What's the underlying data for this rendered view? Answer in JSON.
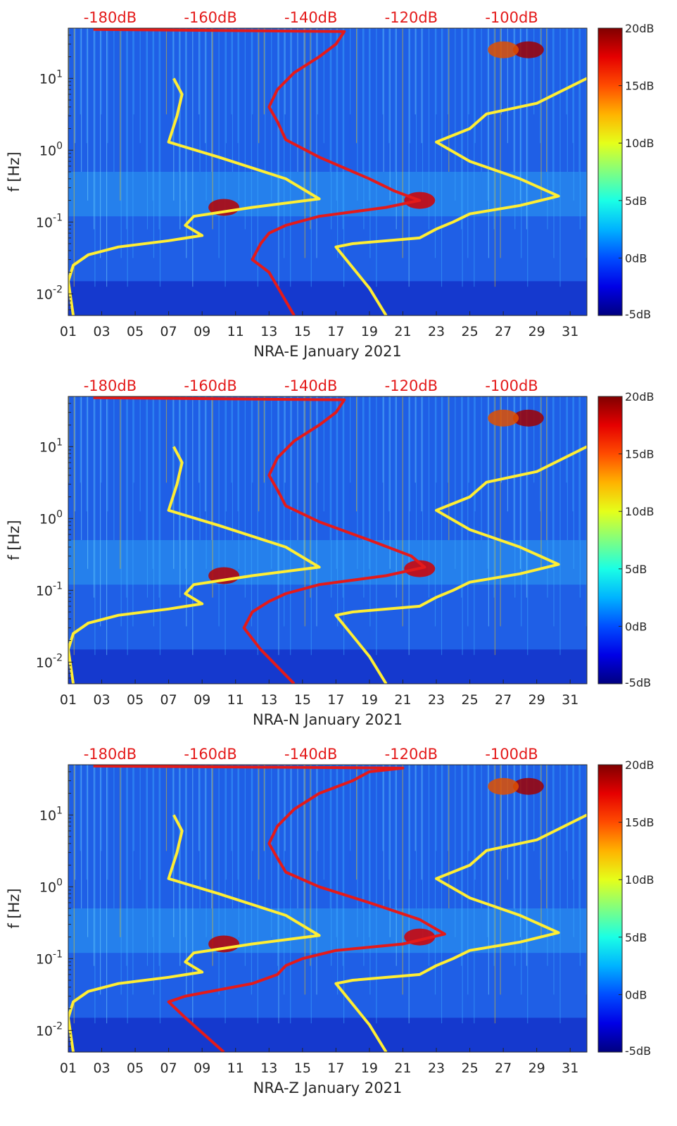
{
  "chart_data": [
    {
      "type": "heatmap",
      "title": "NRA-E January 2021",
      "xlabel": "NRA-E January 2021",
      "ylabel": "f [Hz]",
      "x_ticks": [
        "01",
        "03",
        "05",
        "07",
        "09",
        "11",
        "13",
        "15",
        "17",
        "19",
        "21",
        "23",
        "25",
        "27",
        "29",
        "31"
      ],
      "x_tick_values": [
        1,
        3,
        5,
        7,
        9,
        11,
        13,
        15,
        17,
        19,
        21,
        23,
        25,
        27,
        29,
        31
      ],
      "xlim": [
        1,
        32
      ],
      "ylim": [
        0.005,
        50
      ],
      "y_scale": "log",
      "y_ticks": [
        {
          "base": "10",
          "exp": "1",
          "value": 10
        },
        {
          "base": "10",
          "exp": "0",
          "value": 1
        },
        {
          "base": "10",
          "exp": "-1",
          "value": 0.1
        },
        {
          "base": "10",
          "exp": "-2",
          "value": 0.01
        }
      ],
      "top_axis_labels": [
        "-180dB",
        "-160dB",
        "-140dB",
        "-120dB",
        "-100dB"
      ],
      "top_axis_positions": [
        3.5,
        9.5,
        15.5,
        21.5,
        27.5
      ],
      "colorbar": {
        "labels": [
          "20dB",
          "15dB",
          "10dB",
          "5dB",
          "0dB",
          "-5dB"
        ],
        "values": [
          20,
          15,
          10,
          5,
          0,
          -5
        ],
        "range": [
          -5,
          20
        ],
        "colormap": "jet"
      },
      "series": [
        {
          "name": "yellow-left",
          "color": "#ffee33",
          "points": [
            [
              1.3,
              0.005
            ],
            [
              1,
              0.015
            ],
            [
              1.3,
              0.025
            ],
            [
              2.2,
              0.035
            ],
            [
              4,
              0.045
            ],
            [
              7,
              0.055
            ],
            [
              9,
              0.065
            ],
            [
              8,
              0.09
            ],
            [
              8.5,
              0.12
            ],
            [
              12,
              0.16
            ],
            [
              16,
              0.21
            ],
            [
              14,
              0.4
            ],
            [
              10,
              0.8
            ],
            [
              7,
              1.3
            ],
            [
              7.5,
              3
            ],
            [
              7.8,
              6
            ],
            [
              7.3,
              10
            ]
          ]
        },
        {
          "name": "yellow-right",
          "color": "#ffee33",
          "points": [
            [
              20,
              0.005
            ],
            [
              19,
              0.012
            ],
            [
              17,
              0.045
            ],
            [
              18,
              0.05
            ],
            [
              22,
              0.06
            ],
            [
              23,
              0.08
            ],
            [
              24,
              0.1
            ],
            [
              25,
              0.13
            ],
            [
              28,
              0.17
            ],
            [
              30.3,
              0.23
            ],
            [
              28,
              0.4
            ],
            [
              25,
              0.7
            ],
            [
              23,
              1.3
            ],
            [
              25,
              2
            ],
            [
              26,
              3.2
            ],
            [
              29,
              4.5
            ],
            [
              32,
              10
            ]
          ]
        },
        {
          "name": "red-nlnm",
          "color": "#e41a1a",
          "points": [
            [
              14.5,
              0.005
            ],
            [
              13,
              0.02
            ],
            [
              12,
              0.03
            ],
            [
              12.5,
              0.05
            ],
            [
              13,
              0.07
            ],
            [
              14,
              0.09
            ],
            [
              16,
              0.12
            ],
            [
              20,
              0.16
            ],
            [
              22,
              0.2
            ],
            [
              20.5,
              0.27
            ],
            [
              19,
              0.4
            ],
            [
              16,
              0.8
            ],
            [
              14,
              1.4
            ],
            [
              13.5,
              2.5
            ],
            [
              13,
              4
            ],
            [
              13.5,
              7
            ],
            [
              14.5,
              12
            ],
            [
              16,
              20
            ],
            [
              17,
              30
            ],
            [
              17.5,
              45
            ],
            [
              2.5,
              48
            ]
          ]
        }
      ]
    },
    {
      "type": "heatmap",
      "title": "NRA-N January 2021",
      "xlabel": "NRA-N January 2021",
      "ylabel": "f [Hz]",
      "x_ticks": [
        "01",
        "03",
        "05",
        "07",
        "09",
        "11",
        "13",
        "15",
        "17",
        "19",
        "21",
        "23",
        "25",
        "27",
        "29",
        "31"
      ],
      "x_tick_values": [
        1,
        3,
        5,
        7,
        9,
        11,
        13,
        15,
        17,
        19,
        21,
        23,
        25,
        27,
        29,
        31
      ],
      "xlim": [
        1,
        32
      ],
      "ylim": [
        0.005,
        50
      ],
      "y_scale": "log",
      "y_ticks": [
        {
          "base": "10",
          "exp": "1",
          "value": 10
        },
        {
          "base": "10",
          "exp": "0",
          "value": 1
        },
        {
          "base": "10",
          "exp": "-1",
          "value": 0.1
        },
        {
          "base": "10",
          "exp": "-2",
          "value": 0.01
        }
      ],
      "top_axis_labels": [
        "-180dB",
        "-160dB",
        "-140dB",
        "-120dB",
        "-100dB"
      ],
      "top_axis_positions": [
        3.5,
        9.5,
        15.5,
        21.5,
        27.5
      ],
      "colorbar": {
        "labels": [
          "20dB",
          "15dB",
          "10dB",
          "5dB",
          "0dB",
          "-5dB"
        ],
        "values": [
          20,
          15,
          10,
          5,
          0,
          -5
        ],
        "range": [
          -5,
          20
        ],
        "colormap": "jet"
      },
      "series": [
        {
          "name": "yellow-left",
          "color": "#ffee33",
          "points": [
            [
              1.3,
              0.005
            ],
            [
              1,
              0.015
            ],
            [
              1.3,
              0.025
            ],
            [
              2.2,
              0.035
            ],
            [
              4,
              0.045
            ],
            [
              7,
              0.055
            ],
            [
              9,
              0.065
            ],
            [
              8,
              0.09
            ],
            [
              8.5,
              0.12
            ],
            [
              12,
              0.16
            ],
            [
              16,
              0.21
            ],
            [
              14,
              0.4
            ],
            [
              10,
              0.8
            ],
            [
              7,
              1.3
            ],
            [
              7.5,
              3
            ],
            [
              7.8,
              6
            ],
            [
              7.3,
              10
            ]
          ]
        },
        {
          "name": "yellow-right",
          "color": "#ffee33",
          "points": [
            [
              20,
              0.005
            ],
            [
              19,
              0.012
            ],
            [
              17,
              0.045
            ],
            [
              18,
              0.05
            ],
            [
              22,
              0.06
            ],
            [
              23,
              0.08
            ],
            [
              24,
              0.1
            ],
            [
              25,
              0.13
            ],
            [
              28,
              0.17
            ],
            [
              30.3,
              0.23
            ],
            [
              28,
              0.4
            ],
            [
              25,
              0.7
            ],
            [
              23,
              1.3
            ],
            [
              25,
              2
            ],
            [
              26,
              3.2
            ],
            [
              29,
              4.5
            ],
            [
              32,
              10
            ]
          ]
        },
        {
          "name": "red-nlnm",
          "color": "#e41a1a",
          "points": [
            [
              14.5,
              0.005
            ],
            [
              12.5,
              0.015
            ],
            [
              11.5,
              0.03
            ],
            [
              12,
              0.05
            ],
            [
              13,
              0.07
            ],
            [
              14,
              0.09
            ],
            [
              16,
              0.12
            ],
            [
              20,
              0.16
            ],
            [
              22.3,
              0.21
            ],
            [
              21.5,
              0.3
            ],
            [
              19,
              0.5
            ],
            [
              16,
              0.9
            ],
            [
              14,
              1.5
            ],
            [
              13.5,
              2.5
            ],
            [
              13,
              4
            ],
            [
              13.5,
              7
            ],
            [
              14.5,
              12
            ],
            [
              16,
              20
            ],
            [
              17,
              30
            ],
            [
              17.5,
              45
            ],
            [
              2.5,
              48
            ]
          ]
        }
      ]
    },
    {
      "type": "heatmap",
      "title": "NRA-Z January 2021",
      "xlabel": "NRA-Z January 2021",
      "ylabel": "f [Hz]",
      "x_ticks": [
        "01",
        "03",
        "05",
        "07",
        "09",
        "11",
        "13",
        "15",
        "17",
        "19",
        "21",
        "23",
        "25",
        "27",
        "29",
        "31"
      ],
      "x_tick_values": [
        1,
        3,
        5,
        7,
        9,
        11,
        13,
        15,
        17,
        19,
        21,
        23,
        25,
        27,
        29,
        31
      ],
      "xlim": [
        1,
        32
      ],
      "ylim": [
        0.005,
        50
      ],
      "y_scale": "log",
      "y_ticks": [
        {
          "base": "10",
          "exp": "1",
          "value": 10
        },
        {
          "base": "10",
          "exp": "0",
          "value": 1
        },
        {
          "base": "10",
          "exp": "-1",
          "value": 0.1
        },
        {
          "base": "10",
          "exp": "-2",
          "value": 0.01
        }
      ],
      "top_axis_labels": [
        "-180dB",
        "-160dB",
        "-140dB",
        "-120dB",
        "-100dB"
      ],
      "top_axis_positions": [
        3.5,
        9.5,
        15.5,
        21.5,
        27.5
      ],
      "colorbar": {
        "labels": [
          "20dB",
          "15dB",
          "10dB",
          "5dB",
          "0dB",
          "-5dB"
        ],
        "values": [
          20,
          15,
          10,
          5,
          0,
          -5
        ],
        "range": [
          -5,
          20
        ],
        "colormap": "jet"
      },
      "series": [
        {
          "name": "yellow-left",
          "color": "#ffee33",
          "points": [
            [
              1.3,
              0.005
            ],
            [
              1,
              0.015
            ],
            [
              1.3,
              0.025
            ],
            [
              2.2,
              0.035
            ],
            [
              4,
              0.045
            ],
            [
              7,
              0.055
            ],
            [
              9,
              0.065
            ],
            [
              8,
              0.09
            ],
            [
              8.5,
              0.12
            ],
            [
              12,
              0.16
            ],
            [
              16,
              0.21
            ],
            [
              14,
              0.4
            ],
            [
              10,
              0.8
            ],
            [
              7,
              1.3
            ],
            [
              7.5,
              3
            ],
            [
              7.8,
              6
            ],
            [
              7.3,
              10
            ]
          ]
        },
        {
          "name": "yellow-right",
          "color": "#ffee33",
          "points": [
            [
              20,
              0.005
            ],
            [
              19,
              0.012
            ],
            [
              17,
              0.045
            ],
            [
              18,
              0.05
            ],
            [
              22,
              0.06
            ],
            [
              23,
              0.08
            ],
            [
              24,
              0.1
            ],
            [
              25,
              0.13
            ],
            [
              28,
              0.17
            ],
            [
              30.3,
              0.23
            ],
            [
              28,
              0.4
            ],
            [
              25,
              0.7
            ],
            [
              23,
              1.3
            ],
            [
              25,
              2
            ],
            [
              26,
              3.2
            ],
            [
              29,
              4.5
            ],
            [
              32,
              10
            ]
          ]
        },
        {
          "name": "red-nlnm",
          "color": "#e41a1a",
          "points": [
            [
              10.3,
              0.005
            ],
            [
              8,
              0.015
            ],
            [
              7,
              0.025
            ],
            [
              8,
              0.03
            ],
            [
              12,
              0.045
            ],
            [
              13.5,
              0.06
            ],
            [
              14,
              0.08
            ],
            [
              15,
              0.1
            ],
            [
              17,
              0.13
            ],
            [
              21,
              0.16
            ],
            [
              23.5,
              0.22
            ],
            [
              22,
              0.35
            ],
            [
              19,
              0.6
            ],
            [
              16,
              1
            ],
            [
              14,
              1.6
            ],
            [
              13.5,
              2.5
            ],
            [
              13,
              4
            ],
            [
              13.5,
              7
            ],
            [
              14.5,
              12
            ],
            [
              16,
              20
            ],
            [
              18,
              30
            ],
            [
              19,
              40
            ],
            [
              21,
              45
            ],
            [
              2.5,
              48
            ]
          ]
        }
      ]
    }
  ]
}
